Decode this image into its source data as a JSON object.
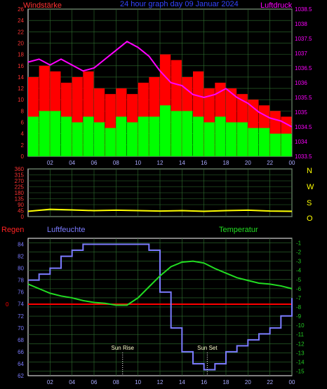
{
  "header": {
    "left": "Windstärke",
    "center": "24 hour graph day  09 Januar 2024",
    "right": "Luftdruck"
  },
  "bottom_labels": {
    "regen": "Regen",
    "luftfeuchte": "Luftfeuchte",
    "temperatur": "Temperatur",
    "sun_rise": "Sun Rise",
    "sun_set": "Sun Set"
  },
  "colors": {
    "wind_gust": "#ff0000",
    "wind_avg": "#00ff00",
    "pressure": "#ff00ff",
    "direction": "#ffff00",
    "rain": "#ff0000",
    "humidity": "#7b7bff",
    "temperature": "#22dd22",
    "grid": "#2f6f2f",
    "axis_left": "#ff3333",
    "axis_right": "#ff00ff",
    "axis_temp": "#22cc22",
    "axis_hum": "#7b7bff",
    "dirs": "#ffff00",
    "tick_x": "#aaaaff"
  },
  "chart_data": [
    {
      "type": "bar",
      "title": "24 hour graph day  09 Januar 2024",
      "ylabel": "Windstärke",
      "y2label": "Luftdruck",
      "xticks": [
        "02",
        "04",
        "06",
        "08",
        "10",
        "12",
        "14",
        "16",
        "18",
        "20",
        "22",
        "00"
      ],
      "ylim": [
        0,
        26
      ],
      "yticks": [
        0,
        2,
        4,
        6,
        8,
        10,
        12,
        14,
        16,
        18,
        20,
        22,
        24,
        26
      ],
      "y2lim": [
        1033.5,
        1038.5
      ],
      "y2ticks": [
        1033.5,
        1034,
        1034.5,
        1035,
        1035.5,
        1036,
        1036.5,
        1037,
        1037.5,
        1038,
        1038.5
      ],
      "x_hours": [
        0,
        1,
        2,
        3,
        4,
        5,
        6,
        7,
        8,
        9,
        10,
        11,
        12,
        13,
        14,
        15,
        16,
        17,
        18,
        19,
        20,
        21,
        22,
        23,
        24
      ],
      "series": [
        {
          "name": "Windstärke",
          "kind": "gust",
          "values": [
            14,
            16,
            15,
            13,
            14,
            15,
            12,
            11,
            12,
            11,
            13,
            14,
            18,
            17,
            14,
            15,
            12,
            13,
            12,
            11,
            10,
            9,
            8,
            7,
            6
          ]
        },
        {
          "name": "",
          "kind": "avg",
          "values": [
            7,
            8,
            8,
            7,
            6,
            7,
            6,
            5,
            7,
            6,
            7,
            7,
            9,
            8,
            8,
            7,
            6,
            7,
            6,
            6,
            5,
            5,
            4,
            4,
            4
          ]
        },
        {
          "name": "Luftdruck",
          "kind": "pressure",
          "axis": "right",
          "values": [
            1036.7,
            1036.8,
            1036.6,
            1036.8,
            1036.6,
            1036.4,
            1036.5,
            1036.8,
            1037.1,
            1037.4,
            1037.2,
            1036.9,
            1036.4,
            1036.0,
            1035.9,
            1035.6,
            1035.5,
            1035.6,
            1035.8,
            1035.5,
            1035.3,
            1035.0,
            1034.8,
            1034.7,
            1034.5
          ]
        }
      ]
    },
    {
      "type": "line",
      "yticks": [
        0,
        45,
        90,
        135,
        180,
        225,
        270,
        315,
        360
      ],
      "ylim": [
        0,
        360
      ],
      "direction_labels": [
        "N",
        "W",
        "S",
        "O",
        "N"
      ],
      "x_hours": [
        0,
        2,
        4,
        6,
        8,
        10,
        12,
        14,
        16,
        18,
        20,
        22,
        24
      ],
      "series": [
        {
          "name": "",
          "values": [
            40,
            55,
            50,
            45,
            48,
            45,
            42,
            45,
            40,
            45,
            48,
            42,
            40
          ]
        }
      ]
    },
    {
      "type": "line",
      "ylabel": "Regen",
      "y2label": "Luftfeuchte",
      "y3label": "Temperatur",
      "xticks": [
        "02",
        "04",
        "06",
        "08",
        "10",
        "12",
        "14",
        "16",
        "18",
        "20",
        "22",
        "00"
      ],
      "humidity_ticks": [
        62,
        64,
        66,
        68,
        70,
        72,
        74,
        76,
        78,
        80,
        82,
        84
      ],
      "humidity_lim": [
        62,
        85
      ],
      "rain_ticks": [
        "0"
      ],
      "temp_ticks": [
        -1,
        -2,
        -3,
        -4,
        -5,
        -6,
        -7,
        -8,
        -9,
        -10,
        -11,
        -12,
        -13,
        -14,
        -15
      ],
      "temp_lim": [
        -15.5,
        -0.5
      ],
      "sun_rise_hour": 8.6,
      "sun_set_hour": 16.3,
      "x_hours": [
        0,
        1,
        2,
        3,
        4,
        5,
        6,
        7,
        8,
        9,
        10,
        11,
        12,
        13,
        14,
        15,
        16,
        17,
        18,
        19,
        20,
        21,
        22,
        23,
        24
      ],
      "series": [
        {
          "name": "Luftfeuchte",
          "values": [
            78,
            79,
            80,
            82,
            83,
            84,
            84,
            84,
            84,
            84,
            84,
            83,
            76,
            70,
            66,
            64,
            63,
            64,
            66,
            67,
            68,
            69,
            70,
            72,
            75
          ]
        },
        {
          "name": "Temperatur",
          "values": [
            -5.5,
            -6.0,
            -6.5,
            -6.8,
            -7.0,
            -7.3,
            -7.5,
            -7.6,
            -7.8,
            -7.8,
            -7.0,
            -5.8,
            -4.6,
            -3.6,
            -3.1,
            -3.0,
            -3.2,
            -3.8,
            -4.3,
            -4.8,
            -5.1,
            -5.4,
            -5.5,
            -5.7,
            -6.0
          ]
        },
        {
          "name": "Regen",
          "values": [
            0,
            0,
            0,
            0,
            0,
            0,
            0,
            0,
            0,
            0,
            0,
            0,
            0,
            0,
            0,
            0,
            0,
            0,
            0,
            0,
            0,
            0,
            0,
            0,
            0
          ]
        }
      ]
    }
  ]
}
